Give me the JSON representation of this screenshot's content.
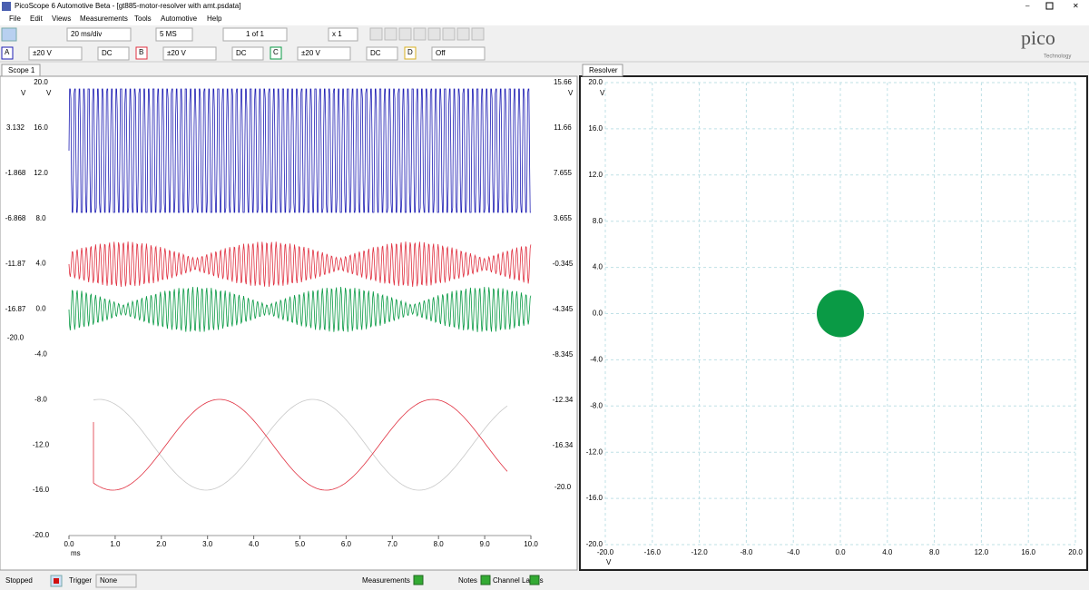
{
  "window": {
    "title": "PicoScope 6 Automotive Beta - [gt885-motor-resolver with amt.psdata]"
  },
  "menu": [
    "File",
    "Edit",
    "Views",
    "Measurements",
    "Tools",
    "Automotive",
    "Help"
  ],
  "toolbar": {
    "timebase": "20 ms/div",
    "samples": "5 MS",
    "buffer": "1 of 1",
    "zoom": "x 1",
    "channels": [
      {
        "name": "A",
        "range": "±20 V",
        "coupling": "DC",
        "color": "#1f1fb4"
      },
      {
        "name": "B",
        "range": "±20 V",
        "coupling": "DC",
        "color": "#e03040"
      },
      {
        "name": "C",
        "range": "±20 V",
        "coupling": "DC",
        "color": "#0a9a45"
      },
      {
        "name": "D",
        "range": "Off",
        "color": "#d8b020"
      }
    ]
  },
  "logo": {
    "name": "pico",
    "sub": "Technology"
  },
  "scope": {
    "tab": "Scope 1",
    "x_unit": "ms",
    "xlim": [
      0,
      10
    ],
    "xticks": [
      {
        "value": 0,
        "label": "0.0"
      },
      {
        "value": 1,
        "label": "1.0"
      },
      {
        "value": 2,
        "label": "2.0"
      },
      {
        "value": 3,
        "label": "3.0"
      },
      {
        "value": 4,
        "label": "4.0"
      },
      {
        "value": 5,
        "label": "5.0"
      },
      {
        "value": 6,
        "label": "6.0"
      },
      {
        "value": 7,
        "label": "7.0"
      },
      {
        "value": 8,
        "label": "8.0"
      },
      {
        "value": 9,
        "label": "9.0"
      },
      {
        "value": 10,
        "label": "10.0"
      }
    ],
    "axes": [
      {
        "unit": "V",
        "color": "#1f1fb4",
        "ylim": [
          -41.77,
          8.132
        ],
        "yticks": [
          3.132,
          -1.868,
          -6.868,
          -11.87,
          -16.87,
          {
            "value": -20,
            "label": "-20.0"
          }
        ]
      },
      {
        "unit": "V",
        "color": "#0a9a45",
        "ylim": [
          -20,
          20
        ],
        "yticks": [
          {
            "value": 20,
            "label": "20.0"
          },
          {
            "value": 16,
            "label": "16.0"
          },
          {
            "value": 12,
            "label": "12.0"
          },
          {
            "value": 8,
            "label": "8.0"
          },
          {
            "value": 4,
            "label": "4.0"
          },
          {
            "value": 0,
            "label": "0.0"
          },
          {
            "value": -4,
            "label": "-4.0"
          },
          {
            "value": -8,
            "label": "-8.0"
          },
          {
            "value": -12,
            "label": "-12.0"
          },
          {
            "value": -16,
            "label": "-16.0"
          },
          {
            "value": -20,
            "label": "-20.0"
          }
        ]
      },
      {
        "unit": "V",
        "color": "#e03040",
        "ylim": [
          -24.26,
          15.66
        ],
        "yticks": [
          15.66,
          11.66,
          7.655,
          3.655,
          -0.345,
          -4.345,
          -8.345,
          -12.34,
          -16.34,
          {
            "value": -20,
            "label": "-20.0"
          }
        ]
      }
    ]
  },
  "resolver": {
    "tab": "Resolver",
    "unit": "V",
    "xlim": [
      -20,
      20
    ],
    "ylim": [
      -20,
      20
    ],
    "xticks": [
      {
        "value": -20,
        "label": "-20.0"
      },
      {
        "value": -16,
        "label": "-16.0"
      },
      {
        "value": -12,
        "label": "-12.0"
      },
      {
        "value": -8,
        "label": "-8.0"
      },
      {
        "value": -4,
        "label": "-4.0"
      },
      {
        "value": 0,
        "label": "0.0"
      },
      {
        "value": 4,
        "label": "4.0"
      },
      {
        "value": 8,
        "label": "8.0"
      },
      {
        "value": 12,
        "label": "12.0"
      },
      {
        "value": 16,
        "label": "16.0"
      },
      {
        "value": 20,
        "label": "20.0"
      }
    ],
    "yticks": [
      {
        "value": 20,
        "label": "20.0"
      },
      {
        "value": 16,
        "label": "16.0"
      },
      {
        "value": 12,
        "label": "12.0"
      },
      {
        "value": 8,
        "label": "8.0"
      },
      {
        "value": 4,
        "label": "4.0"
      },
      {
        "value": 0,
        "label": "0.0"
      },
      {
        "value": -4,
        "label": "-4.0"
      },
      {
        "value": -8,
        "label": "-8.0"
      },
      {
        "value": -12,
        "label": "-12.0"
      },
      {
        "value": -16,
        "label": "-16.0"
      },
      {
        "value": -20,
        "label": "-20.0"
      }
    ],
    "point": {
      "x": 0,
      "y": 0,
      "color": "#0a9a45"
    }
  },
  "status": {
    "state": "Stopped",
    "trigger": "Trigger",
    "trigger_mode": "None",
    "measurements": "Measurements",
    "notes": "Notes",
    "channel_labels": "Channel Labels"
  }
}
